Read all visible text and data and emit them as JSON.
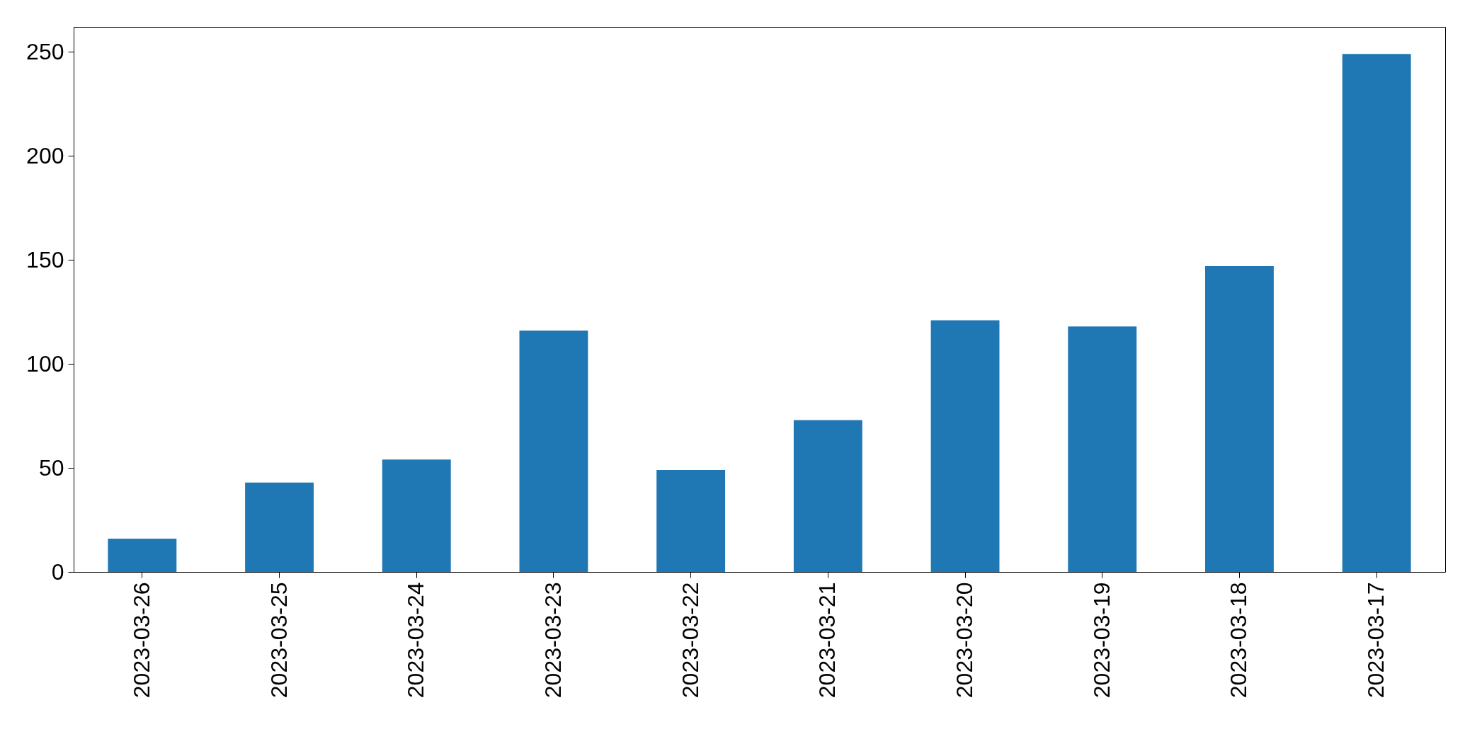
{
  "chart_data": {
    "type": "bar",
    "categories": [
      "2023-03-26",
      "2023-03-25",
      "2023-03-24",
      "2023-03-23",
      "2023-03-22",
      "2023-03-21",
      "2023-03-20",
      "2023-03-19",
      "2023-03-18",
      "2023-03-17"
    ],
    "values": [
      16,
      43,
      54,
      116,
      49,
      73,
      121,
      118,
      147,
      249
    ],
    "color": "#1f77b4",
    "ylim": [
      0,
      262
    ],
    "yticks": [
      0,
      50,
      100,
      150,
      200,
      250
    ],
    "grid": false
  }
}
